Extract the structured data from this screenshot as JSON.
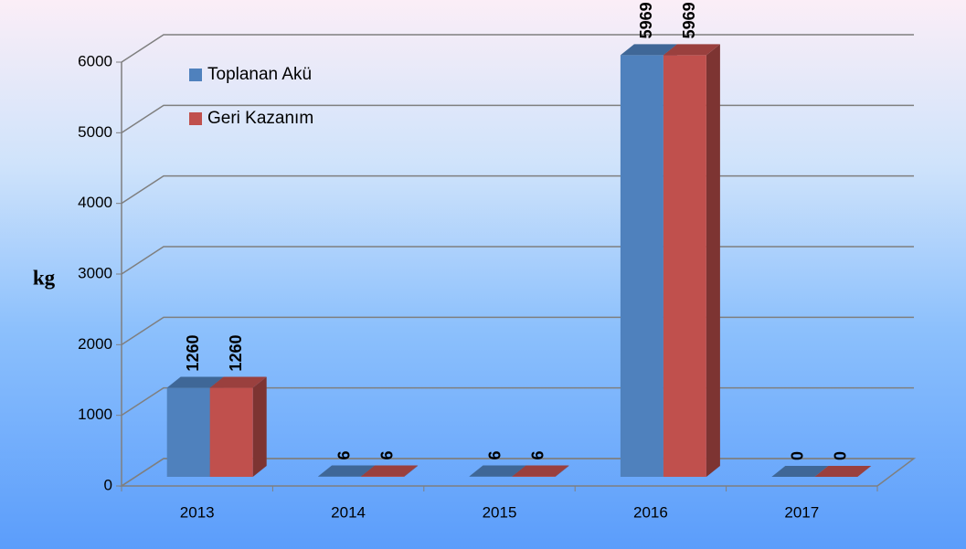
{
  "chart_data": {
    "type": "bar3d",
    "y_label": "kg",
    "categories": [
      "2013",
      "2014",
      "2015",
      "2016",
      "2017"
    ],
    "series": [
      {
        "name": "Toplanan Akü",
        "color": "#4f81bd",
        "values": [
          1260,
          6,
          6,
          5969,
          0
        ]
      },
      {
        "name": "Geri Kazanım",
        "color": "#c0504d",
        "values": [
          1260,
          6,
          6,
          5969,
          0
        ]
      }
    ],
    "ylim": [
      0,
      6000
    ],
    "yticks": [
      0,
      1000,
      2000,
      3000,
      4000,
      5000,
      6000
    ],
    "grid": true,
    "legend": "top-left",
    "data_labels": true
  }
}
